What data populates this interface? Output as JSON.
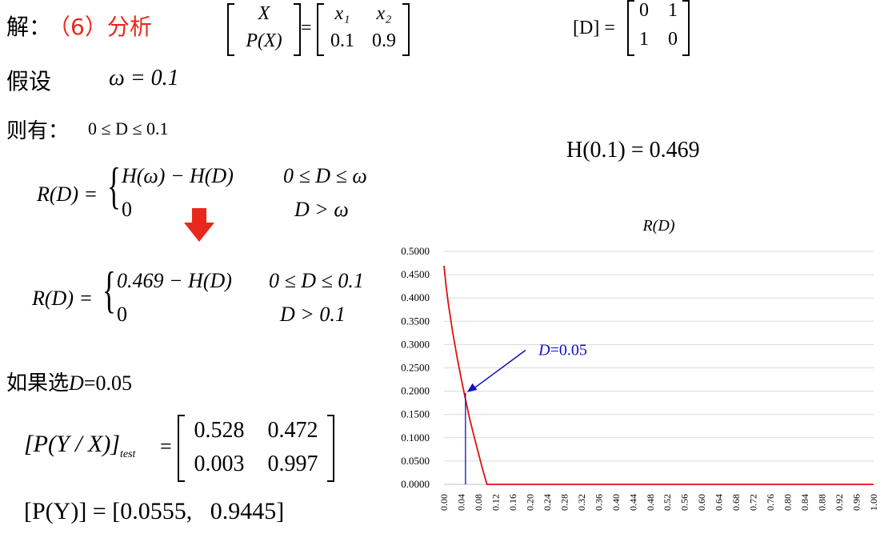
{
  "header": {
    "jie": "解：",
    "section": "（6）分析",
    "x_label": "X",
    "px_label": "P(X)",
    "x1": "x₁",
    "x2": "x₂",
    "p1": "0.1",
    "p2": "0.9",
    "eq": "=",
    "d_label": "[D] =",
    "d11": "0",
    "d12": "1",
    "d21": "1",
    "d22": "0"
  },
  "assume": {
    "label": "假设",
    "expr": "ω = 0.1"
  },
  "then": {
    "label": "则有：",
    "expr": "0 ≤ D ≤ 0.1"
  },
  "h_value": "H(0.1) = 0.469",
  "rd1": {
    "lhs": "R(D) =",
    "case1_expr": "H(ω) − H(D)",
    "case1_cond": "0 ≤ D ≤ ω",
    "case2_expr": "0",
    "case2_cond": "D > ω"
  },
  "rd2": {
    "lhs": "R(D) =",
    "case1_expr": "0.469 − H(D)",
    "case1_cond": "0 ≤ D ≤ 0.1",
    "case2_expr": "0",
    "case2_cond": "D > 0.1"
  },
  "choose": {
    "prefix": "如果选",
    "var": "D",
    "rest": "=0.05"
  },
  "pyx": {
    "lhs": "[P(Y / X)]",
    "sub": "test",
    "eq": "=",
    "a11": "0.528",
    "a12": "0.472",
    "a21": "0.003",
    "a22": "0.997"
  },
  "py": {
    "text": "[P(Y)] = [0.0555,   0.9445]"
  },
  "colors": {
    "arrow": "#e8281c",
    "curve": "#e01010",
    "annotation": "#1010c0"
  },
  "chart_data": {
    "type": "line",
    "title": "R(D)",
    "ylim": [
      0,
      0.5
    ],
    "xlim": [
      0,
      1.0
    ],
    "yticks": [
      "0.0000",
      "0.0500",
      "0.1000",
      "0.1500",
      "0.2000",
      "0.2500",
      "0.3000",
      "0.3500",
      "0.4000",
      "0.4500",
      "0.5000"
    ],
    "xticks": [
      "0.00",
      "0.04",
      "0.08",
      "0.12",
      "0.16",
      "0.20",
      "0.24",
      "0.28",
      "0.32",
      "0.36",
      "0.40",
      "0.44",
      "0.48",
      "0.52",
      "0.56",
      "0.60",
      "0.64",
      "0.68",
      "0.72",
      "0.76",
      "0.80",
      "0.84",
      "0.88",
      "0.92",
      "0.96",
      "1.00"
    ],
    "grid": true,
    "series": [
      {
        "x": [
          0,
          0.005,
          0.01,
          0.02,
          0.03,
          0.04,
          0.05,
          0.06,
          0.07,
          0.08,
          0.09,
          0.1,
          1.0
        ],
        "y": [
          0.469,
          0.424,
          0.388,
          0.328,
          0.275,
          0.227,
          0.183,
          0.14,
          0.103,
          0.067,
          0.032,
          0,
          0
        ]
      }
    ],
    "annotation": {
      "text_var": "D",
      "text_rest": "=0.05",
      "x": 0.05,
      "y": 0.196
    }
  }
}
